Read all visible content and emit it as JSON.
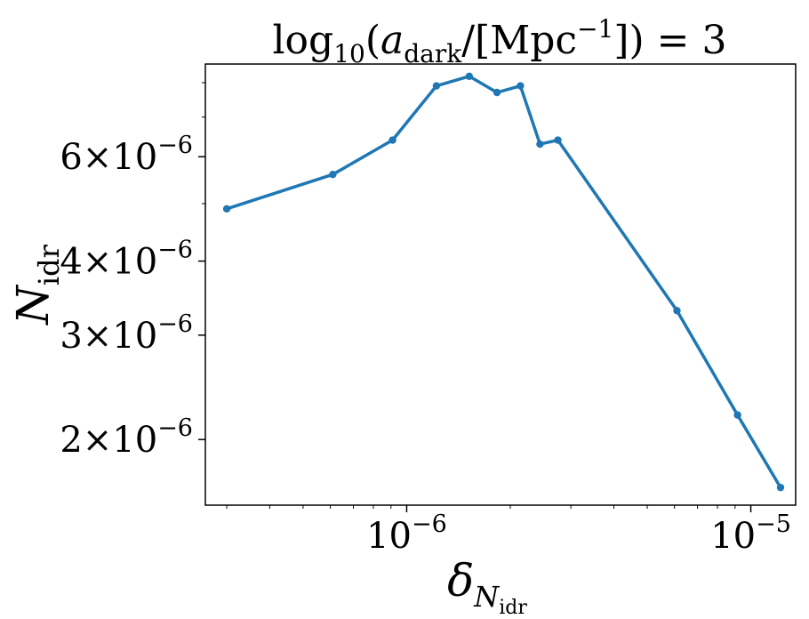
{
  "chart_data": {
    "type": "line",
    "title": {
      "prefix": "log",
      "prefix_sub": "10",
      "open": "(",
      "var": "a",
      "var_sub": "dark",
      "mid": "/[Mpc",
      "mid_sup": "−1",
      "close": "]) = 3"
    },
    "xlabel": {
      "main": "δ",
      "sub": "N",
      "subsub": "idr"
    },
    "ylabel": {
      "main": "N",
      "sub": "idr"
    },
    "x_scale": "log",
    "y_scale": "log",
    "xlim": [
      2.6e-07,
      1.35e-05
    ],
    "ylim": [
      1.55e-06,
      8.6e-06
    ],
    "x_ticks": [
      {
        "value": 1e-06,
        "mantissa": "10",
        "exp": "−6"
      },
      {
        "value": 1e-05,
        "mantissa": "10",
        "exp": "−5"
      }
    ],
    "y_ticks": [
      {
        "value": 2e-06,
        "coef": "2",
        "times": "×",
        "base": "10",
        "exp": "−6"
      },
      {
        "value": 3e-06,
        "coef": "3",
        "times": "×",
        "base": "10",
        "exp": "−6"
      },
      {
        "value": 4e-06,
        "coef": "4",
        "times": "×",
        "base": "10",
        "exp": "−6"
      },
      {
        "value": 6e-06,
        "coef": "6",
        "times": "×",
        "base": "10",
        "exp": "−6"
      }
    ],
    "line_color": "#1f77b4",
    "grid": false,
    "series": [
      {
        "x": [
          3e-07,
          6.1e-07,
          9.1e-07,
          1.22e-06,
          1.52e-06,
          1.83e-06,
          2.14e-06,
          2.44e-06,
          2.75e-06,
          6.1e-06,
          9.15e-06,
          1.22e-05
        ],
        "y": [
          4.9e-06,
          5.6e-06,
          6.4e-06,
          7.9e-06,
          8.2e-06,
          7.7e-06,
          7.9e-06,
          6.3e-06,
          6.4e-06,
          3.3e-06,
          2.2e-06,
          1.66e-06
        ]
      }
    ]
  }
}
